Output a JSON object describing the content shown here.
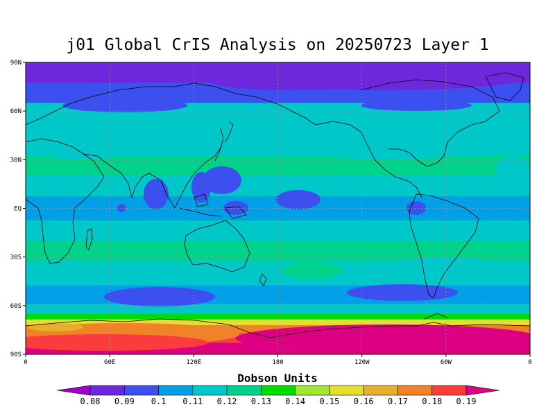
{
  "title": "j01 Global CrIS Analysis on 20250723 Layer 1",
  "colorbar": {
    "title": "Dobson Units",
    "levels": [
      "0.08",
      "0.09",
      "0.1",
      "0.11",
      "0.12",
      "0.13",
      "0.14",
      "0.15",
      "0.16",
      "0.17",
      "0.18",
      "0.19"
    ],
    "colors": [
      "#a000c8",
      "#6e28dc",
      "#3c50f0",
      "#00a0e6",
      "#00c8c8",
      "#00d28c",
      "#00dc00",
      "#a0e632",
      "#e6dc32",
      "#e6af2d",
      "#f08228",
      "#fa3c3c",
      "#dc0082"
    ]
  },
  "map": {
    "lat_ticks": [
      "90N",
      "60N",
      "30N",
      "EQ",
      "30S",
      "60S",
      "90S"
    ],
    "lon_ticks": [
      "0",
      "60E",
      "120E",
      "180",
      "120W",
      "60W",
      "0"
    ]
  },
  "chart_data": {
    "type": "heatmap",
    "title": "j01 Global CrIS Analysis on 20250723 Layer 1",
    "xlabel": "",
    "ylabel": "",
    "colorbar_label": "Dobson Units",
    "x_ticks": [
      "0",
      "60E",
      "120E",
      "180",
      "120W",
      "60W",
      "0"
    ],
    "y_ticks": [
      "90N",
      "60N",
      "30N",
      "EQ",
      "30S",
      "60S",
      "90S"
    ],
    "value_range": [
      0.08,
      0.19
    ],
    "zonal_profile": [
      {
        "lat": 85,
        "value": 0.085
      },
      {
        "lat": 70,
        "value": 0.095
      },
      {
        "lat": 60,
        "value": 0.11
      },
      {
        "lat": 40,
        "value": 0.115
      },
      {
        "lat": 25,
        "value": 0.12
      },
      {
        "lat": 15,
        "value": 0.11
      },
      {
        "lat": 0,
        "value": 0.105
      },
      {
        "lat": -15,
        "value": 0.11
      },
      {
        "lat": -25,
        "value": 0.12
      },
      {
        "lat": -40,
        "value": 0.115
      },
      {
        "lat": -55,
        "value": 0.105
      },
      {
        "lat": -63,
        "value": 0.115
      },
      {
        "lat": -67,
        "value": 0.13
      },
      {
        "lat": -70,
        "value": 0.15
      },
      {
        "lat": -74,
        "value": 0.17
      },
      {
        "lat": -80,
        "value": 0.185
      },
      {
        "lat": -86,
        "value": 0.19
      }
    ],
    "grid": true
  }
}
